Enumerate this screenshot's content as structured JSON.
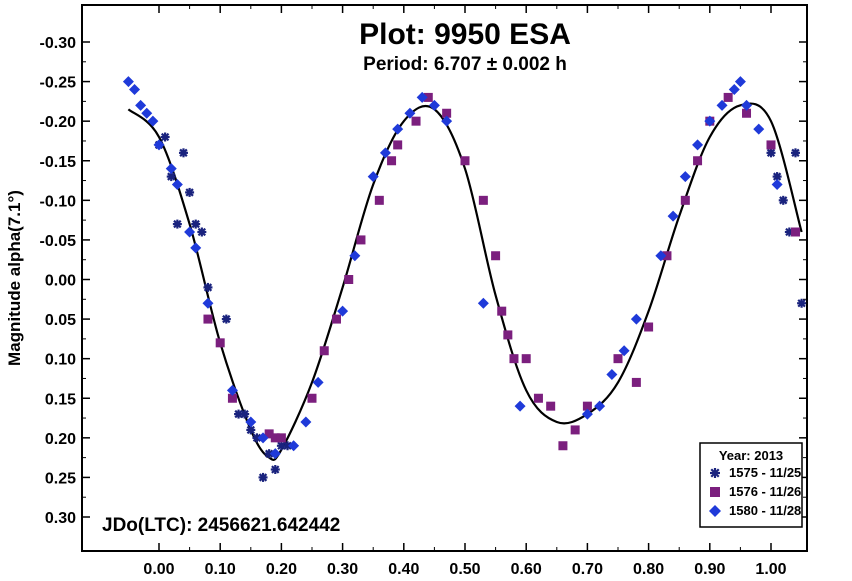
{
  "chart_data": {
    "type": "scatter",
    "title": "Plot: 9950 ESA",
    "subtitle": "Period: 6.707 ± 0.002 h",
    "ylabel": "Magnitude alpha(7.1°)",
    "xlabel": "",
    "annotation": "JDo(LTC): 2456621.642442",
    "xlim": [
      -0.12,
      1.08
    ],
    "ylim": [
      0.35,
      -0.35
    ],
    "y_inverted": true,
    "x_ticks": [
      "0.00",
      "0.10",
      "0.20",
      "0.30",
      "0.40",
      "0.50",
      "0.60",
      "0.70",
      "0.80",
      "0.90",
      "1.00"
    ],
    "y_ticks": [
      "-0.30",
      "-0.25",
      "-0.20",
      "-0.15",
      "-0.10",
      "-0.05",
      "0.00",
      "0.05",
      "0.10",
      "0.15",
      "0.20",
      "0.25",
      "0.30"
    ],
    "legend": {
      "title": "Year: 2013",
      "placement": "bottom-right",
      "entries": [
        "1575 - 11/25",
        "1576 - 11/26",
        "1580 - 11/28"
      ]
    },
    "fit_curve": {
      "x": [
        -0.05,
        0.0,
        0.05,
        0.1,
        0.15,
        0.18,
        0.2,
        0.25,
        0.3,
        0.35,
        0.4,
        0.45,
        0.5,
        0.55,
        0.6,
        0.65,
        0.7,
        0.75,
        0.8,
        0.85,
        0.9,
        0.95,
        1.0,
        1.05
      ],
      "y": [
        -0.215,
        -0.18,
        -0.07,
        0.08,
        0.19,
        0.225,
        0.215,
        0.13,
        0.01,
        -0.12,
        -0.2,
        -0.215,
        -0.14,
        0.02,
        0.14,
        0.18,
        0.17,
        0.13,
        0.04,
        -0.08,
        -0.18,
        -0.22,
        -0.2,
        -0.06
      ]
    },
    "series": [
      {
        "name": "1575 - 11/25",
        "marker": "asterisk",
        "color": "#1a237e",
        "x": [
          0.0,
          0.01,
          0.02,
          0.03,
          0.04,
          0.05,
          0.06,
          0.07,
          0.08,
          0.11,
          0.13,
          0.14,
          0.15,
          0.16,
          0.17,
          0.18,
          0.19,
          0.2,
          0.21,
          1.0,
          1.01,
          1.02,
          1.03,
          1.04,
          1.05
        ],
        "y": [
          -0.17,
          -0.18,
          -0.13,
          -0.07,
          -0.16,
          -0.11,
          -0.07,
          -0.06,
          0.01,
          0.05,
          0.17,
          0.17,
          0.19,
          0.2,
          0.25,
          0.22,
          0.24,
          0.21,
          0.21,
          -0.16,
          -0.13,
          -0.1,
          -0.06,
          -0.16,
          0.03
        ]
      },
      {
        "name": "1576 - 11/26",
        "marker": "square",
        "color": "#7b1f7e",
        "x": [
          0.08,
          0.1,
          0.12,
          0.18,
          0.19,
          0.2,
          0.25,
          0.27,
          0.29,
          0.31,
          0.33,
          0.36,
          0.38,
          0.39,
          0.42,
          0.44,
          0.47,
          0.5,
          0.53,
          0.55,
          0.56,
          0.57,
          0.58,
          0.6,
          0.62,
          0.64,
          0.66,
          0.68,
          0.7,
          0.75,
          0.78,
          0.8,
          0.83,
          0.86,
          0.88,
          0.9,
          0.93,
          0.96,
          1.0,
          1.04
        ],
        "y": [
          0.05,
          0.08,
          0.15,
          0.195,
          0.2,
          0.2,
          0.15,
          0.09,
          0.05,
          0.0,
          -0.05,
          -0.1,
          -0.15,
          -0.17,
          -0.2,
          -0.23,
          -0.21,
          -0.15,
          -0.1,
          -0.03,
          0.04,
          0.07,
          0.1,
          0.1,
          0.15,
          0.16,
          0.21,
          0.19,
          0.16,
          0.1,
          0.13,
          0.06,
          -0.03,
          -0.1,
          -0.15,
          -0.2,
          -0.23,
          -0.21,
          -0.17,
          -0.06
        ]
      },
      {
        "name": "1580 - 11/28",
        "marker": "diamond",
        "color": "#1f3ad9",
        "x": [
          -0.05,
          -0.04,
          -0.03,
          -0.02,
          -0.01,
          0.0,
          0.02,
          0.03,
          0.05,
          0.06,
          0.08,
          0.12,
          0.15,
          0.17,
          0.19,
          0.22,
          0.24,
          0.26,
          0.3,
          0.32,
          0.35,
          0.37,
          0.39,
          0.41,
          0.43,
          0.45,
          0.47,
          0.53,
          0.59,
          0.7,
          0.72,
          0.74,
          0.76,
          0.78,
          0.82,
          0.84,
          0.86,
          0.88,
          0.9,
          0.92,
          0.94,
          0.95,
          0.96,
          0.98,
          1.01
        ],
        "y": [
          -0.25,
          -0.24,
          -0.22,
          -0.21,
          -0.2,
          -0.17,
          -0.14,
          -0.12,
          -0.06,
          -0.04,
          0.03,
          0.14,
          0.18,
          0.2,
          0.22,
          0.21,
          0.18,
          0.13,
          0.04,
          -0.03,
          -0.13,
          -0.16,
          -0.19,
          -0.21,
          -0.23,
          -0.22,
          -0.2,
          0.03,
          0.16,
          0.17,
          0.16,
          0.12,
          0.09,
          0.05,
          -0.03,
          -0.08,
          -0.13,
          -0.17,
          -0.2,
          -0.22,
          -0.24,
          -0.25,
          -0.22,
          -0.19,
          -0.12
        ]
      }
    ]
  }
}
